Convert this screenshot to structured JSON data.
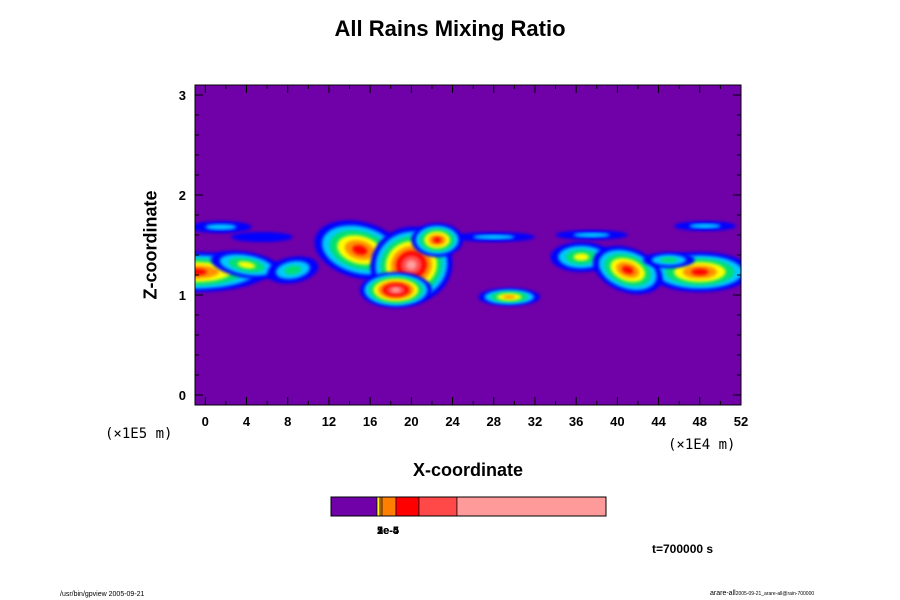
{
  "chart_data": {
    "type": "heatmap",
    "title": "All Rains Mixing Ratio",
    "xlabel": "X-coordinate",
    "ylabel": "Z-coordinate",
    "x_multiplier": "(×1E4 m)",
    "y_multiplier": "(×1E5 m)",
    "xlim": [
      -1,
      52
    ],
    "ylim": [
      -0.1,
      3.1
    ],
    "x_ticks": [
      "0",
      "4",
      "8",
      "12",
      "16",
      "20",
      "24",
      "28",
      "32",
      "36",
      "40",
      "44",
      "48",
      "52"
    ],
    "y_ticks": [
      "0",
      "1",
      "2",
      "3"
    ],
    "background_color": "#7000a8",
    "contour_colors": [
      "#0000ff",
      "#00c8ff",
      "#00e070",
      "#ffff00",
      "#ff9000",
      "#ff0000",
      "#ff5050",
      "#ffa0a0"
    ],
    "colorbar": {
      "segments": [
        "#7000a8",
        "#ffff00",
        "#ff9000",
        "#ff7f00",
        "#ff0000",
        "#ff4848",
        "#ff9a9a"
      ],
      "labels_overlapping": [
        "1e-5",
        "2e-5",
        "5e-4"
      ]
    },
    "time_label": "t=700000 s",
    "footer_left": "/usr/bin/gpview 2005-09-21",
    "footer_right_main": "arare-all",
    "footer_right_small": "2005-09-21_arare-all@rain-700000"
  }
}
